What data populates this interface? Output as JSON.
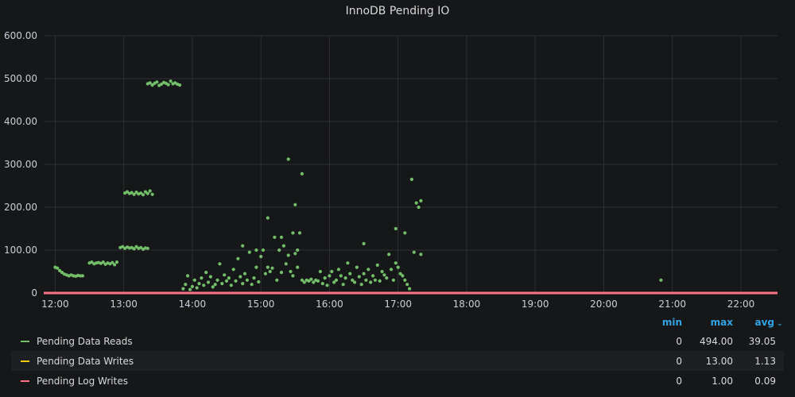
{
  "panel": {
    "title": "InnoDB Pending IO"
  },
  "legend": {
    "headers": {
      "min": "min",
      "max": "max",
      "avg": "avg"
    },
    "sort_icon": "chevron-down-icon",
    "rows": [
      {
        "name": "Pending Data Reads",
        "color": "#73bf69",
        "min": "0",
        "max": "494.00",
        "avg": "39.05"
      },
      {
        "name": "Pending Data Writes",
        "color": "#f2cc0c",
        "min": "0",
        "max": "13.00",
        "avg": "1.13"
      },
      {
        "name": "Pending Log Writes",
        "color": "#ff7383",
        "min": "0",
        "max": "1.00",
        "avg": "0.09"
      }
    ]
  },
  "chart_data": {
    "type": "scatter",
    "title": "InnoDB Pending IO",
    "x_ticks": [
      "12:00",
      "13:00",
      "14:00",
      "15:00",
      "16:00",
      "17:00",
      "18:00",
      "19:00",
      "20:00",
      "21:00",
      "22:00"
    ],
    "y_ticks": [
      "0",
      "100.00",
      "200.00",
      "300.00",
      "400.00",
      "500.00",
      "600.00"
    ],
    "xlim": [
      "11:50",
      "22:32"
    ],
    "ylim": [
      0,
      600
    ],
    "grid": true,
    "legend_position": "bottom",
    "series": [
      {
        "name": "Pending Data Reads",
        "color": "#73bf69",
        "points": [
          [
            "12:00",
            60
          ],
          [
            "12:02",
            58
          ],
          [
            "12:04",
            52
          ],
          [
            "12:06",
            48
          ],
          [
            "12:08",
            44
          ],
          [
            "12:10",
            42
          ],
          [
            "12:12",
            40
          ],
          [
            "12:14",
            42
          ],
          [
            "12:16",
            40
          ],
          [
            "12:18",
            39
          ],
          [
            "12:20",
            41
          ],
          [
            "12:22",
            40
          ],
          [
            "12:24",
            40
          ],
          [
            "12:30",
            70
          ],
          [
            "12:32",
            72
          ],
          [
            "12:34",
            68
          ],
          [
            "12:36",
            70
          ],
          [
            "12:38",
            71
          ],
          [
            "12:40",
            69
          ],
          [
            "12:42",
            72
          ],
          [
            "12:44",
            67
          ],
          [
            "12:46",
            70
          ],
          [
            "12:48",
            68
          ],
          [
            "12:50",
            71
          ],
          [
            "12:52",
            66
          ],
          [
            "12:54",
            72
          ],
          [
            "12:57",
            106
          ],
          [
            "12:59",
            108
          ],
          [
            "13:01",
            104
          ],
          [
            "13:03",
            107
          ],
          [
            "13:05",
            105
          ],
          [
            "13:07",
            106
          ],
          [
            "13:09",
            103
          ],
          [
            "13:11",
            108
          ],
          [
            "13:13",
            104
          ],
          [
            "13:15",
            106
          ],
          [
            "13:17",
            102
          ],
          [
            "13:19",
            105
          ],
          [
            "13:21",
            104
          ],
          [
            "13:01",
            233
          ],
          [
            "13:03",
            236
          ],
          [
            "13:05",
            232
          ],
          [
            "13:07",
            234
          ],
          [
            "13:09",
            230
          ],
          [
            "13:11",
            235
          ],
          [
            "13:13",
            231
          ],
          [
            "13:15",
            233
          ],
          [
            "13:17",
            229
          ],
          [
            "13:19",
            236
          ],
          [
            "13:21",
            232
          ],
          [
            "13:23",
            238
          ],
          [
            "13:25",
            230
          ],
          [
            "13:21",
            488
          ],
          [
            "13:23",
            490
          ],
          [
            "13:25",
            485
          ],
          [
            "13:27",
            489
          ],
          [
            "13:29",
            492
          ],
          [
            "13:31",
            484
          ],
          [
            "13:33",
            487
          ],
          [
            "13:35",
            491
          ],
          [
            "13:37",
            489
          ],
          [
            "13:39",
            486
          ],
          [
            "13:41",
            494
          ],
          [
            "13:43",
            488
          ],
          [
            "13:45",
            490
          ],
          [
            "13:47",
            487
          ],
          [
            "13:49",
            485
          ],
          [
            "13:52",
            10
          ],
          [
            "13:54",
            20
          ],
          [
            "13:56",
            40
          ],
          [
            "13:58",
            8
          ],
          [
            "14:00",
            15
          ],
          [
            "14:02",
            30
          ],
          [
            "14:04",
            12
          ],
          [
            "14:06",
            22
          ],
          [
            "14:08",
            35
          ],
          [
            "14:10",
            18
          ],
          [
            "14:12",
            48
          ],
          [
            "14:14",
            25
          ],
          [
            "14:16",
            38
          ],
          [
            "14:18",
            14
          ],
          [
            "14:20",
            20
          ],
          [
            "14:22",
            30
          ],
          [
            "14:24",
            68
          ],
          [
            "14:26",
            22
          ],
          [
            "14:28",
            42
          ],
          [
            "14:30",
            28
          ],
          [
            "14:32",
            35
          ],
          [
            "14:34",
            18
          ],
          [
            "14:36",
            55
          ],
          [
            "14:38",
            28
          ],
          [
            "14:40",
            80
          ],
          [
            "14:42",
            38
          ],
          [
            "14:44",
            22
          ],
          [
            "14:46",
            45
          ],
          [
            "14:48",
            30
          ],
          [
            "14:50",
            95
          ],
          [
            "14:52",
            20
          ],
          [
            "14:54",
            35
          ],
          [
            "14:56",
            60
          ],
          [
            "14:58",
            26
          ],
          [
            "15:00",
            85
          ],
          [
            "15:02",
            100
          ],
          [
            "15:04",
            45
          ],
          [
            "15:06",
            60
          ],
          [
            "15:08",
            50
          ],
          [
            "15:10",
            58
          ],
          [
            "15:12",
            130
          ],
          [
            "15:14",
            30
          ],
          [
            "15:16",
            100
          ],
          [
            "15:18",
            48
          ],
          [
            "15:20",
            110
          ],
          [
            "15:22",
            68
          ],
          [
            "15:24",
            88
          ],
          [
            "15:26",
            50
          ],
          [
            "15:28",
            40
          ],
          [
            "15:30",
            92
          ],
          [
            "15:32",
            60
          ],
          [
            "15:34",
            140
          ],
          [
            "15:36",
            30
          ],
          [
            "15:38",
            25
          ],
          [
            "15:40",
            30
          ],
          [
            "15:42",
            28
          ],
          [
            "15:44",
            32
          ],
          [
            "15:46",
            25
          ],
          [
            "15:48",
            30
          ],
          [
            "15:50",
            28
          ],
          [
            "15:52",
            50
          ],
          [
            "15:54",
            22
          ],
          [
            "15:56",
            35
          ],
          [
            "15:58",
            18
          ],
          [
            "16:00",
            40
          ],
          [
            "16:02",
            50
          ],
          [
            "16:04",
            25
          ],
          [
            "16:06",
            30
          ],
          [
            "16:08",
            55
          ],
          [
            "16:10",
            40
          ],
          [
            "16:12",
            20
          ],
          [
            "16:14",
            35
          ],
          [
            "16:16",
            70
          ],
          [
            "16:18",
            45
          ],
          [
            "16:20",
            30
          ],
          [
            "16:22",
            25
          ],
          [
            "16:24",
            60
          ],
          [
            "16:26",
            38
          ],
          [
            "16:28",
            20
          ],
          [
            "16:30",
            45
          ],
          [
            "16:32",
            30
          ],
          [
            "16:34",
            55
          ],
          [
            "16:36",
            25
          ],
          [
            "16:38",
            40
          ],
          [
            "16:40",
            30
          ],
          [
            "16:42",
            65
          ],
          [
            "16:44",
            28
          ],
          [
            "16:46",
            50
          ],
          [
            "16:48",
            42
          ],
          [
            "16:50",
            35
          ],
          [
            "16:52",
            90
          ],
          [
            "16:54",
            55
          ],
          [
            "16:56",
            30
          ],
          [
            "16:58",
            70
          ],
          [
            "17:00",
            60
          ],
          [
            "17:02",
            45
          ],
          [
            "17:04",
            40
          ],
          [
            "17:06",
            30
          ],
          [
            "17:08",
            20
          ],
          [
            "17:10",
            10
          ],
          [
            "14:44",
            110
          ],
          [
            "14:56",
            100
          ],
          [
            "15:06",
            175
          ],
          [
            "15:18",
            130
          ],
          [
            "15:24",
            312
          ],
          [
            "15:28",
            140
          ],
          [
            "15:30",
            206
          ],
          [
            "15:32",
            100
          ],
          [
            "15:36",
            278
          ],
          [
            "16:30",
            115
          ],
          [
            "16:58",
            150
          ],
          [
            "17:06",
            140
          ],
          [
            "17:12",
            265
          ],
          [
            "17:14",
            95
          ],
          [
            "17:16",
            210
          ],
          [
            "17:18",
            200
          ],
          [
            "17:20",
            215
          ],
          [
            "17:20",
            90
          ],
          [
            "20:50",
            30
          ]
        ]
      },
      {
        "name": "Pending Data Writes",
        "color": "#f2cc0c",
        "points": []
      },
      {
        "name": "Pending Log Writes",
        "color": "#ff7383",
        "points": []
      }
    ]
  }
}
